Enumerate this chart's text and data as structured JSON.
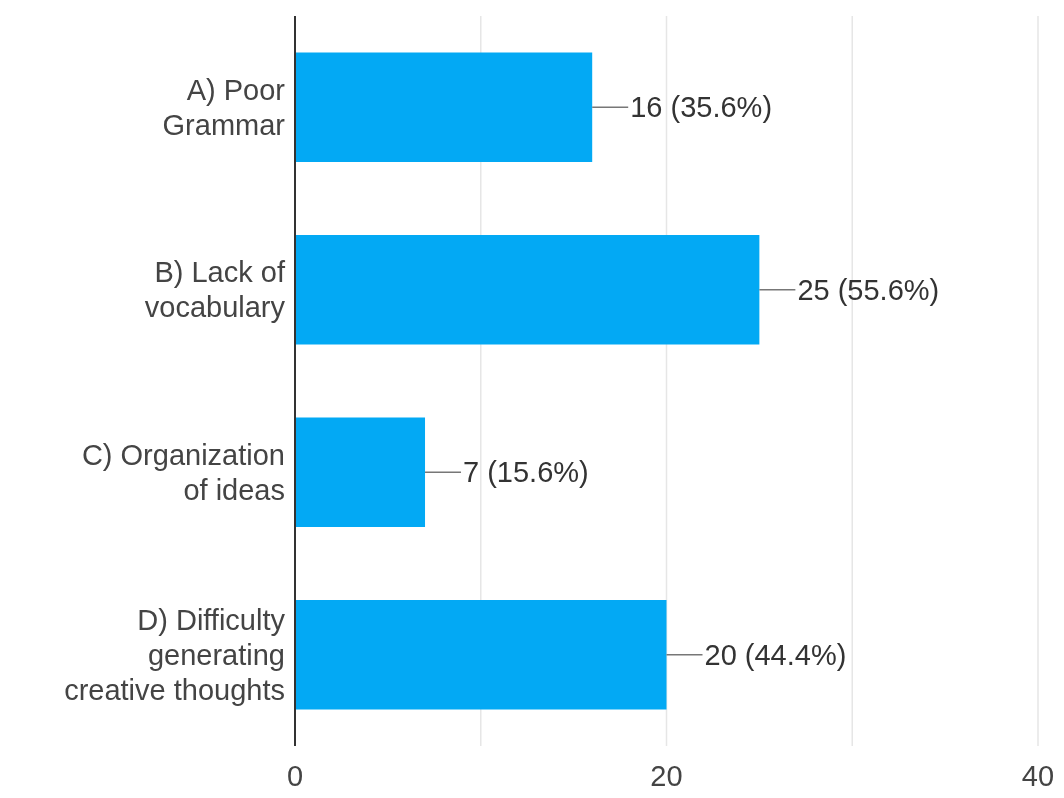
{
  "chart_data": {
    "type": "bar",
    "orientation": "horizontal",
    "categories": [
      "A) Poor\nGrammar",
      "B) Lack of\nvocabulary",
      "C) Organization\nof ideas",
      "D) Difficulty\ngenerating\ncreative thoughts"
    ],
    "values": [
      16,
      25,
      7,
      20
    ],
    "value_labels": [
      "16 (35.6%)",
      "25 (55.6%)",
      "7 (15.6%)",
      "20 (44.4%)"
    ],
    "color": "#03a9f4",
    "xlim": [
      0,
      40
    ],
    "xticks": [
      0,
      {
        "value": 10,
        "label": null
      },
      20,
      {
        "value": 30,
        "label": null
      },
      40
    ],
    "grid": "x"
  }
}
